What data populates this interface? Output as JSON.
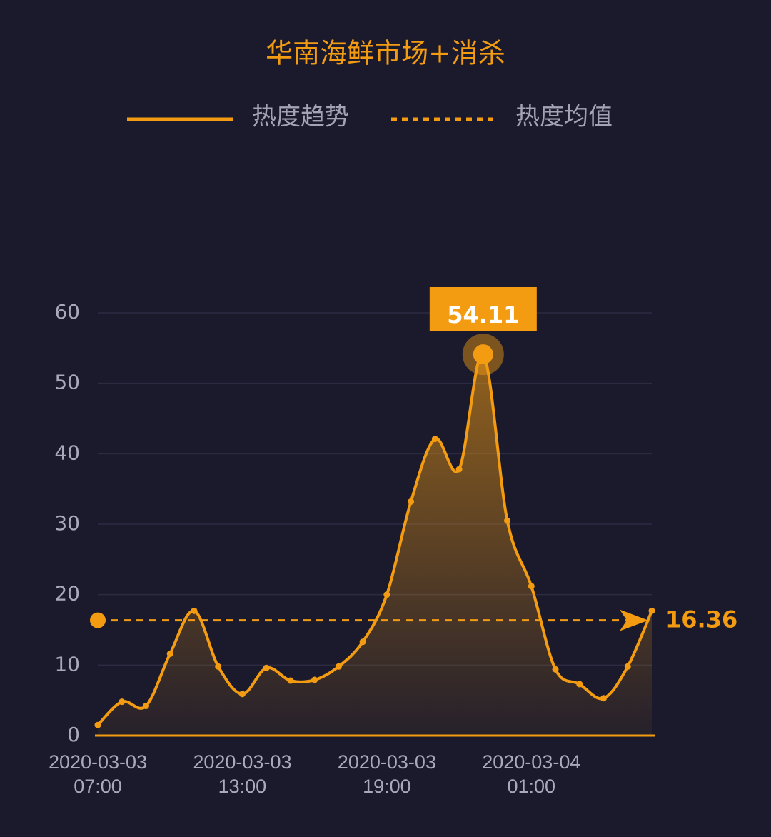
{
  "chart_data": {
    "type": "line",
    "title": "华南海鲜市场+消杀",
    "categories": [
      "2020-03-03\n07:00",
      null,
      null,
      null,
      null,
      null,
      "2020-03-03\n13:00",
      null,
      null,
      null,
      null,
      null,
      "2020-03-03\n19:00",
      null,
      null,
      null,
      null,
      null,
      "2020-03-04\n01:00",
      null,
      null,
      null,
      null,
      null
    ],
    "series": [
      {
        "name": "热度趋势",
        "color": "#f39c12",
        "values": [
          1.5,
          4.8,
          4.2,
          11.6,
          17.7,
          9.8,
          5.9,
          9.6,
          7.8,
          7.9,
          9.8,
          13.3,
          20,
          33.2,
          42.1,
          37.8,
          54.11,
          30.5,
          21.2,
          9.4,
          7.3,
          5.3,
          9.8,
          17.7
        ]
      }
    ],
    "mean": {
      "name": "热度均值",
      "value": 16.36,
      "color": "#f39c12"
    },
    "ylim": [
      0,
      60
    ],
    "yticks": [
      0,
      10,
      20,
      30,
      40,
      50,
      60
    ],
    "grid": true
  }
}
